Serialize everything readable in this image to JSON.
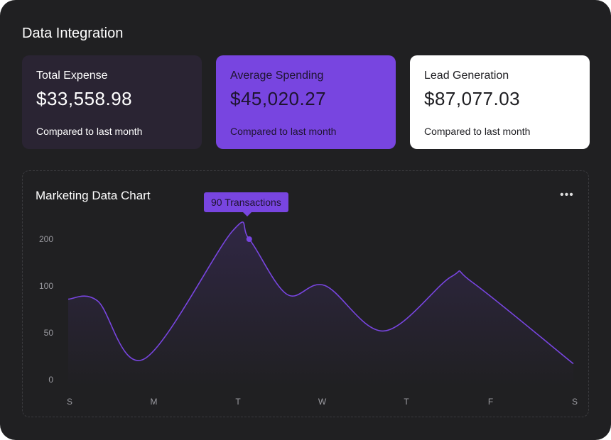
{
  "title": "Data Integration",
  "cards": [
    {
      "label": "Total Expense",
      "value": "$33,558.98",
      "compare": "Compared to last month"
    },
    {
      "label": "Average Spending",
      "value": "$45,020.27",
      "compare": "Compared to last month"
    },
    {
      "label": "Lead Generation",
      "value": "$87,077.03",
      "compare": "Compared to last month"
    }
  ],
  "chart_data": {
    "type": "area",
    "title": "Marketing Data Chart",
    "more_icon": "ellipsis-icon",
    "tooltip": "90 Transactions",
    "highlight_point": {
      "x": 2.15,
      "y": 200
    },
    "categories": [
      "S",
      "M",
      "T",
      "W",
      "T",
      "F",
      "S"
    ],
    "yticks": [
      0,
      50,
      100,
      200
    ],
    "points": [
      [
        0,
        86
      ],
      [
        0.35,
        84
      ],
      [
        0.9,
        22
      ],
      [
        1.95,
        217
      ],
      [
        2.15,
        200
      ],
      [
        2.6,
        91
      ],
      [
        3.05,
        101
      ],
      [
        3.75,
        52
      ],
      [
        4.55,
        120
      ],
      [
        4.8,
        108
      ],
      [
        6,
        17
      ]
    ],
    "line_color": "#7845e0"
  }
}
